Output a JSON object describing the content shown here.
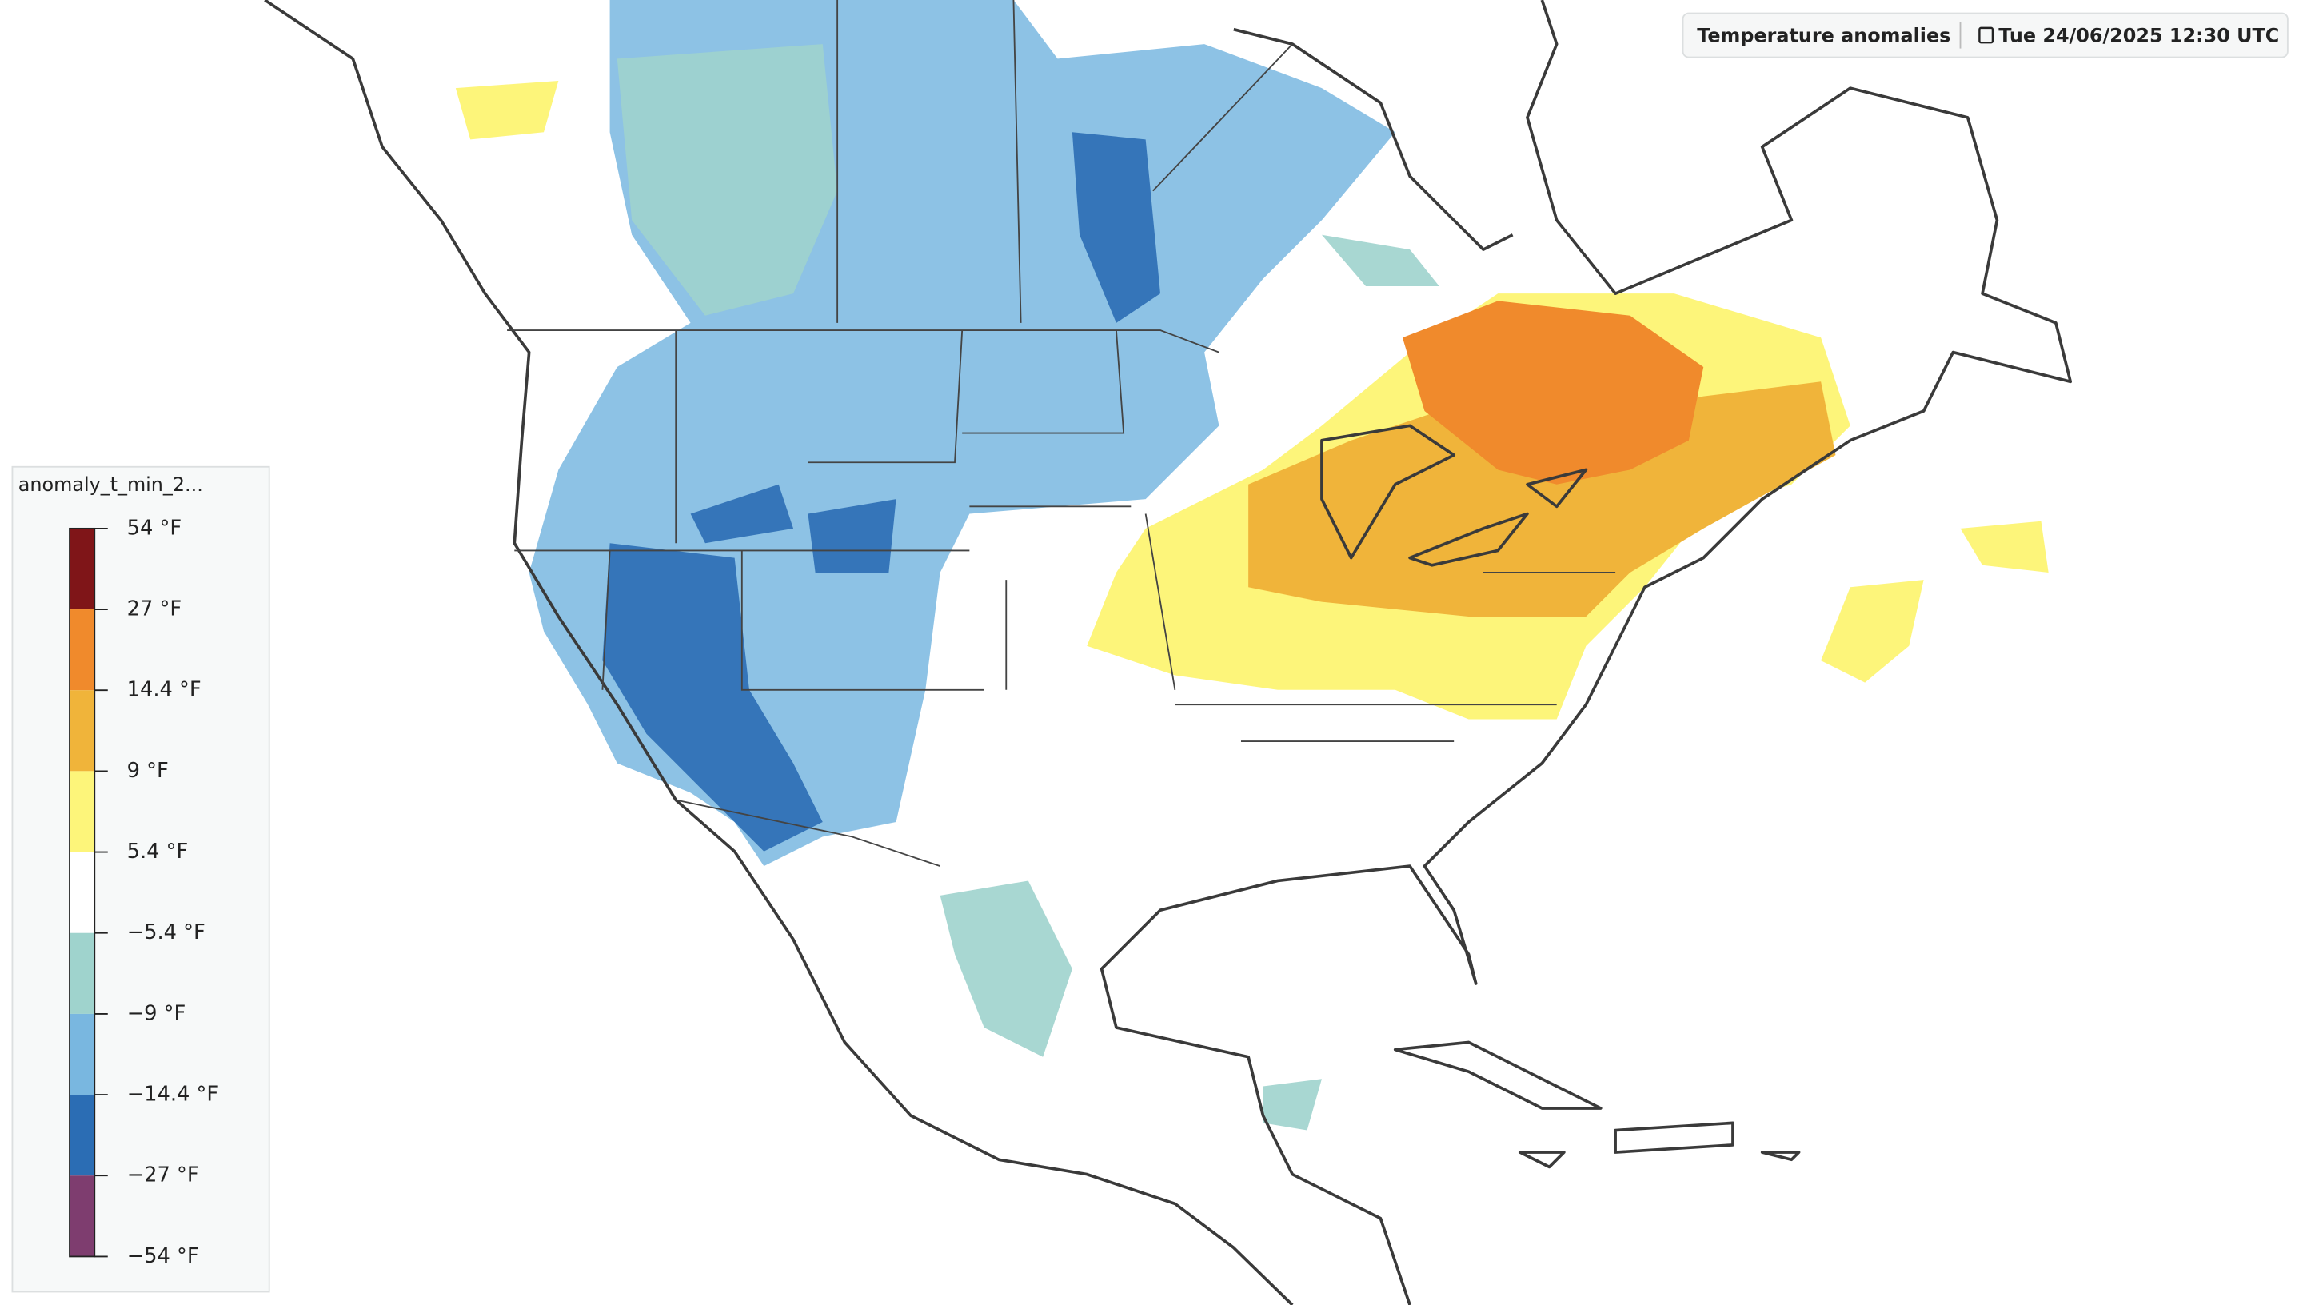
{
  "header": {
    "title": "Temperature anomalies",
    "datetime": "Tue 24/06/2025 12:30  UTC"
  },
  "legend": {
    "title": "anomaly_t_min_2...",
    "ticks": [
      "54 °F",
      "27 °F",
      "14.4 °F",
      "9 °F",
      "5.4 °F",
      "−5.4 °F",
      "−9 °F",
      "−14.4 °F",
      "−27 °F",
      "−54 °F"
    ],
    "colors": [
      "#7f1518",
      "#f08a2c",
      "#f0b43a",
      "#fdf57a",
      "#ffffff",
      "#9fd3cd",
      "#79b7e0",
      "#2b6db4",
      "#7e3d6f"
    ]
  }
}
